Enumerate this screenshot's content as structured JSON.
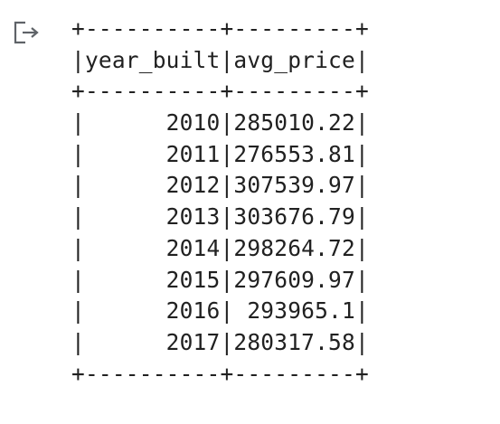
{
  "output": {
    "icon": "output-redirect-icon",
    "lines": [
      "+----------+---------+",
      "|year_built|avg_price|",
      "+----------+---------+",
      "|      2010|285010.22|",
      "|      2011|276553.81|",
      "|      2012|307539.97|",
      "|      2013|303676.79|",
      "|      2014|298264.72|",
      "|      2015|297609.97|",
      "|      2016| 293965.1|",
      "|      2017|280317.58|",
      "+----------+---------+"
    ]
  }
}
